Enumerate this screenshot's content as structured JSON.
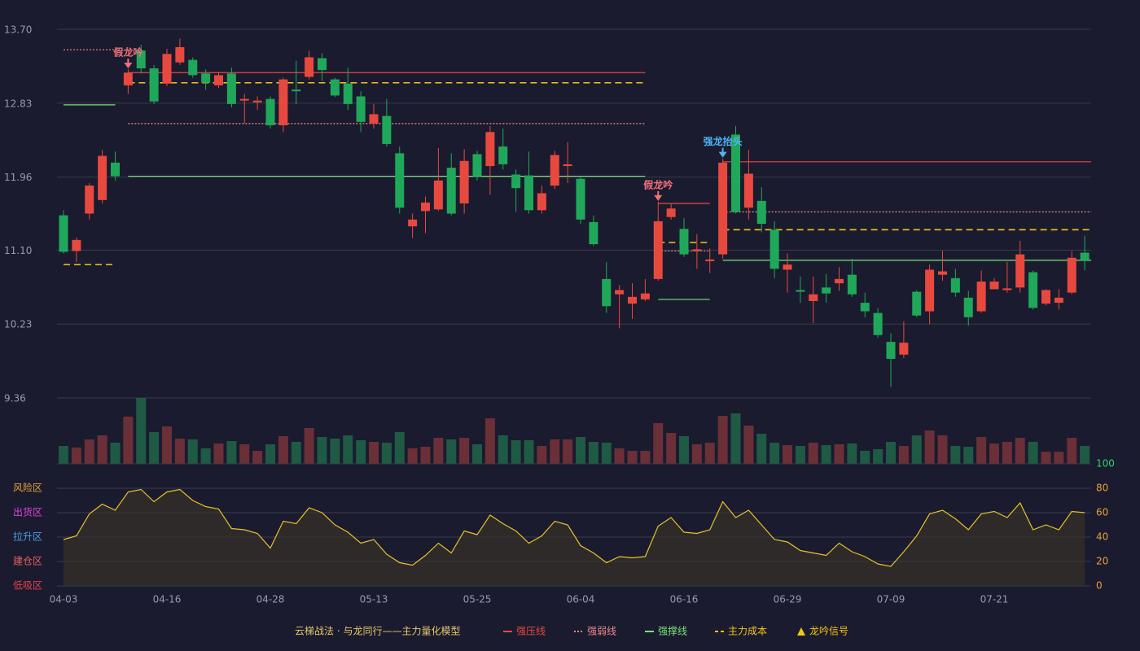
{
  "chart_data": [
    {
      "type": "candlestick",
      "categories": [
        "04-03",
        null,
        null,
        null,
        null,
        null,
        null,
        null,
        "04-16",
        null,
        null,
        null,
        null,
        null,
        null,
        null,
        "04-28",
        null,
        null,
        null,
        null,
        null,
        null,
        null,
        "05-13",
        null,
        null,
        null,
        null,
        null,
        null,
        null,
        "05-25",
        null,
        null,
        null,
        null,
        null,
        null,
        null,
        "06-04",
        null,
        null,
        null,
        null,
        null,
        null,
        null,
        "06-16",
        null,
        null,
        null,
        null,
        null,
        null,
        null,
        "06-29",
        null,
        null,
        null,
        null,
        null,
        null,
        null,
        "07-09",
        null,
        null,
        null,
        null,
        null,
        null,
        null,
        "07-21",
        null,
        null,
        null,
        null,
        null,
        null,
        null
      ],
      "open": [
        11.51,
        11.09,
        11.53,
        11.69,
        12.13,
        13.04,
        13.45,
        13.24,
        13.06,
        13.31,
        13.34,
        13.18,
        13.04,
        13.18,
        12.86,
        12.84,
        12.88,
        12.57,
        12.99,
        13.14,
        13.36,
        13.11,
        13.06,
        12.91,
        12.59,
        12.68,
        12.24,
        11.38,
        11.56,
        11.58,
        12.07,
        11.65,
        12.23,
        12.09,
        12.32,
        11.99,
        11.98,
        11.57,
        11.86,
        12.09,
        11.94,
        11.43,
        10.76,
        10.58,
        10.47,
        10.52,
        10.76,
        11.49,
        11.35,
        11.09,
        10.97,
        11.05,
        12.46,
        11.6,
        11.68,
        11.34,
        10.87,
        10.63,
        10.5,
        10.66,
        10.71,
        10.81,
        10.48,
        10.36,
        10.02,
        9.87,
        10.61,
        10.38,
        10.81,
        10.77,
        10.54,
        10.38,
        10.64,
        10.63,
        10.66,
        10.84,
        10.47,
        10.48,
        10.6,
        11.07
      ],
      "high": [
        11.57,
        11.25,
        11.89,
        12.28,
        12.26,
        13.23,
        13.52,
        13.28,
        13.47,
        13.59,
        13.37,
        13.23,
        13.2,
        13.25,
        12.94,
        12.91,
        12.91,
        13.13,
        13.33,
        13.45,
        13.42,
        13.13,
        13.25,
        12.97,
        12.82,
        12.88,
        12.32,
        11.53,
        11.73,
        12.3,
        12.24,
        12.29,
        12.27,
        12.56,
        12.53,
        12.05,
        12.26,
        11.86,
        12.27,
        12.37,
        11.96,
        11.51,
        10.96,
        10.69,
        10.71,
        10.76,
        11.67,
        11.65,
        11.48,
        11.29,
        11.12,
        12.18,
        12.56,
        12.28,
        11.84,
        11.44,
        11.06,
        10.79,
        10.79,
        10.82,
        10.9,
        11.0,
        10.6,
        10.42,
        10.12,
        10.26,
        10.63,
        10.93,
        11.09,
        10.88,
        10.62,
        10.86,
        10.77,
        10.96,
        11.21,
        10.86,
        10.64,
        10.64,
        11.09,
        11.27
      ],
      "low": [
        11.06,
        10.96,
        11.46,
        11.65,
        11.92,
        12.94,
        13.18,
        12.82,
        13.03,
        13.28,
        13.13,
        12.99,
        13.01,
        12.78,
        12.59,
        12.75,
        12.53,
        12.49,
        12.82,
        13.11,
        13.09,
        12.9,
        12.75,
        12.49,
        12.53,
        12.32,
        11.53,
        11.24,
        11.3,
        11.56,
        11.51,
        11.53,
        11.92,
        11.75,
        12.05,
        11.55,
        11.53,
        11.53,
        11.82,
        11.89,
        11.41,
        11.15,
        10.36,
        10.18,
        10.29,
        10.5,
        10.74,
        11.46,
        11.02,
        10.88,
        10.83,
        11.0,
        11.53,
        11.46,
        11.31,
        10.77,
        10.6,
        10.48,
        10.24,
        10.48,
        10.62,
        10.55,
        10.31,
        10.07,
        9.49,
        9.83,
        10.31,
        10.23,
        10.74,
        10.55,
        10.21,
        10.36,
        10.64,
        10.6,
        10.6,
        10.4,
        10.45,
        10.4,
        10.58,
        10.86
      ],
      "close": [
        11.08,
        11.22,
        11.86,
        12.21,
        11.97,
        13.19,
        13.24,
        12.85,
        13.41,
        13.49,
        13.16,
        13.07,
        13.16,
        12.82,
        12.88,
        12.86,
        12.57,
        13.11,
        12.97,
        13.37,
        13.22,
        12.92,
        12.82,
        12.61,
        12.7,
        12.35,
        11.6,
        11.46,
        11.66,
        11.92,
        11.53,
        12.15,
        11.97,
        12.49,
        12.11,
        11.83,
        11.57,
        11.77,
        12.22,
        12.11,
        11.46,
        11.17,
        10.44,
        10.63,
        10.55,
        10.59,
        11.44,
        11.59,
        11.05,
        11.11,
        10.99,
        12.13,
        11.55,
        12.0,
        11.41,
        10.88,
        10.93,
        10.61,
        10.58,
        10.59,
        10.76,
        10.58,
        10.38,
        10.1,
        9.82,
        10.01,
        10.33,
        10.87,
        10.85,
        10.6,
        10.31,
        10.73,
        10.73,
        10.65,
        11.05,
        10.42,
        10.63,
        10.54,
        11.01,
        10.98
      ],
      "up_color": "#e8493f",
      "down_color": "#1fa85a",
      "ylim": [
        9.36,
        13.7
      ],
      "yticks": [
        {
          "value": 9.36,
          "label": "9.36"
        },
        10.23,
        {
          "value": 11.1,
          "label": "11.10"
        },
        11.96,
        12.83,
        {
          "value": 13.7,
          "label": "13.70"
        }
      ],
      "grid": true,
      "levels": [
        {
          "name": "强压线",
          "color": "#e8493f",
          "style": "solid",
          "segments": [
            {
              "start": 5,
              "end": 45,
              "value": 13.19
            },
            {
              "start": 46,
              "end": 50,
              "value": 11.65
            },
            {
              "start": 51,
              "end": 79,
              "value": 12.14
            }
          ]
        },
        {
          "name": "强弱线",
          "color": "#f08a8a",
          "style": "dotted",
          "segments": [
            {
              "start": 0,
              "end": 4,
              "value": 13.46
            },
            {
              "start": 5,
              "end": 45,
              "value": 12.59
            },
            {
              "start": 46,
              "end": 50,
              "value": 11.09
            },
            {
              "start": 51,
              "end": 79,
              "value": 11.55
            }
          ]
        },
        {
          "name": "强撑线",
          "color": "#7be27b",
          "style": "solid",
          "segments": [
            {
              "start": 0,
              "end": 4,
              "value": 12.81
            },
            {
              "start": 5,
              "end": 45,
              "value": 11.97
            },
            {
              "start": 46,
              "end": 50,
              "value": 10.52
            },
            {
              "start": 51,
              "end": 79,
              "value": 10.98
            }
          ]
        },
        {
          "name": "主力成本",
          "color": "#f5c518",
          "style": "dashed",
          "segments": [
            {
              "start": 0,
              "end": 4,
              "value": 10.93
            },
            {
              "start": 5,
              "end": 45,
              "value": 13.07
            },
            {
              "start": 46,
              "end": 50,
              "value": 11.19
            },
            {
              "start": 51,
              "end": 79,
              "value": 11.34
            }
          ]
        }
      ],
      "signals": [
        {
          "index": 5,
          "label": "假龙吟",
          "color": "#f0707a"
        },
        {
          "index": 46,
          "label": "假龙吟",
          "color": "#f0707a"
        },
        {
          "index": 51,
          "label": "强龙抬头",
          "color": "#4fb4f5"
        }
      ]
    },
    {
      "type": "bar",
      "values": [
        22,
        20,
        30,
        35,
        26,
        58,
        81,
        39,
        46,
        31,
        30,
        19,
        25,
        28,
        24,
        16,
        24,
        34,
        27,
        44,
        33,
        31,
        35,
        29,
        27,
        26,
        39,
        19,
        21,
        32,
        30,
        32,
        24,
        56,
        35,
        29,
        29,
        22,
        30,
        30,
        33,
        27,
        26,
        19,
        16,
        16,
        50,
        38,
        34,
        24,
        26,
        59,
        62,
        47,
        37,
        26,
        23,
        22,
        26,
        23,
        24,
        25,
        16,
        18,
        27,
        22,
        35,
        41,
        35,
        22,
        21,
        33,
        25,
        27,
        32,
        27,
        15,
        15,
        32,
        22
      ],
      "up_color": "#6b2f37",
      "down_color": "#1e5a44"
    },
    {
      "type": "line",
      "values": [
        38,
        41,
        59,
        67,
        62,
        77,
        79,
        69,
        77,
        79,
        70,
        65,
        63,
        47,
        46,
        43,
        31,
        53,
        51,
        64,
        60,
        50,
        44,
        35,
        38,
        26,
        19,
        17,
        25,
        35,
        27,
        45,
        42,
        58,
        51,
        45,
        35,
        41,
        53,
        50,
        33,
        27,
        19,
        24,
        23,
        24,
        49,
        56,
        44,
        43,
        46,
        69,
        56,
        62,
        50,
        38,
        36,
        29,
        27,
        25,
        35,
        28,
        24,
        18,
        16,
        28,
        41,
        59,
        62,
        55,
        46,
        59,
        61,
        56,
        68,
        46,
        50,
        46,
        61,
        60
      ],
      "color": "#e6c229",
      "y2lim": [
        0,
        100
      ],
      "y2ticks": [
        0,
        20,
        40,
        60,
        80,
        100
      ],
      "tick_colors": [
        "#e8a23a",
        "#e8a23a",
        "#e8a23a",
        "#e8a23a",
        "#e8a23a",
        "#33d06a"
      ],
      "zones": [
        {
          "value": 80,
          "label": "风险区",
          "color": "#e8a23a"
        },
        {
          "value": 60,
          "label": "出货区",
          "color": "#e040e0"
        },
        {
          "value": 40,
          "label": "拉升区",
          "color": "#4a9ff0"
        },
        {
          "value": 20,
          "label": "建仓区",
          "color": "#e86060"
        },
        {
          "value": 0,
          "label": "低吸区",
          "color": "#e84050"
        }
      ]
    }
  ],
  "legend": {
    "title": "云梯战法 · 与龙同行——主力量化模型",
    "title_color": "#e6c86a",
    "signal": "龙吟信号",
    "signal_color": "#f5c518"
  }
}
